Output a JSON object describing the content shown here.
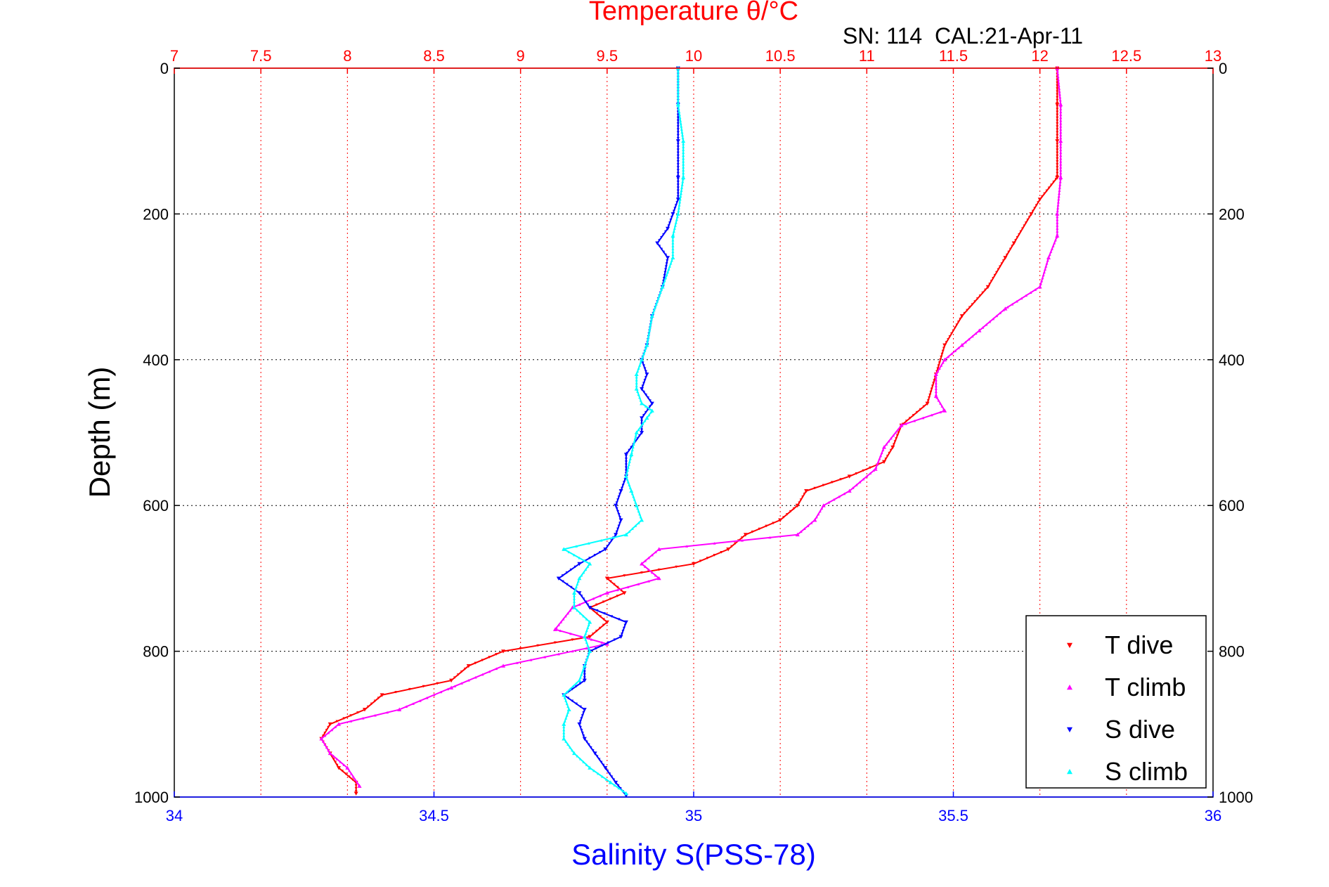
{
  "chart_data": {
    "type": "scatter",
    "top_axis_label": "Temperature θ/°C",
    "bottom_axis_label": "Salinity S(PSS-78)",
    "ylabel": "Depth (m)",
    "annotation": "SN: 114  CAL:21-Apr-11",
    "top_axis": {
      "lim": [
        7,
        13
      ],
      "ticks": [
        "7",
        "7.5",
        "8",
        "8.5",
        "9",
        "9.5",
        "10",
        "10.5",
        "11",
        "11.5",
        "12",
        "12.5",
        "13"
      ],
      "color": "#ff0000"
    },
    "bottom_axis": {
      "lim": [
        34,
        36
      ],
      "ticks": [
        "34",
        "34.5",
        "35",
        "35.5",
        "36"
      ],
      "color": "#0000ff"
    },
    "y_axis": {
      "lim": [
        0,
        1000
      ],
      "reversed": true,
      "ticks": [
        "0",
        "200",
        "400",
        "600",
        "800",
        "1000"
      ]
    },
    "grid": true,
    "legend_position": "bottom-right",
    "series": [
      {
        "name": "T dive",
        "axis": "temperature",
        "color": "#ff0000",
        "marker": "triangle-down",
        "depth": [
          0,
          50,
          100,
          150,
          180,
          200,
          240,
          260,
          300,
          340,
          380,
          420,
          460,
          490,
          520,
          540,
          560,
          580,
          600,
          620,
          640,
          660,
          680,
          700,
          720,
          740,
          760,
          780,
          800,
          820,
          840,
          860,
          880,
          900,
          920,
          940,
          960,
          980,
          995
        ],
        "values": [
          12.1,
          12.1,
          12.1,
          12.1,
          12.0,
          11.95,
          11.85,
          11.8,
          11.7,
          11.55,
          11.45,
          11.4,
          11.35,
          11.2,
          11.15,
          11.1,
          10.9,
          10.65,
          10.6,
          10.5,
          10.3,
          10.2,
          10.0,
          9.5,
          9.6,
          9.4,
          9.5,
          9.4,
          8.9,
          8.7,
          8.6,
          8.2,
          8.1,
          7.9,
          7.85,
          7.9,
          7.95,
          8.05,
          8.05
        ]
      },
      {
        "name": "T climb",
        "axis": "temperature",
        "color": "#ff00ff",
        "marker": "triangle-up",
        "depth": [
          0,
          50,
          100,
          150,
          200,
          230,
          260,
          300,
          330,
          360,
          380,
          400,
          420,
          450,
          470,
          490,
          520,
          550,
          580,
          600,
          620,
          640,
          660,
          680,
          700,
          720,
          740,
          770,
          790,
          820,
          850,
          880,
          900,
          920,
          940,
          960,
          985
        ],
        "values": [
          12.1,
          12.12,
          12.12,
          12.12,
          12.1,
          12.1,
          12.05,
          12.0,
          11.8,
          11.65,
          11.55,
          11.45,
          11.4,
          11.4,
          11.45,
          11.2,
          11.1,
          11.05,
          10.9,
          10.75,
          10.7,
          10.6,
          9.8,
          9.7,
          9.8,
          9.5,
          9.3,
          9.2,
          9.5,
          8.9,
          8.6,
          8.3,
          7.95,
          7.85,
          7.9,
          8.0,
          8.07
        ]
      },
      {
        "name": "S dive",
        "axis": "salinity",
        "color": "#0000ff",
        "marker": "triangle-down",
        "depth": [
          0,
          50,
          100,
          150,
          180,
          200,
          220,
          240,
          260,
          300,
          340,
          380,
          400,
          420,
          440,
          460,
          480,
          500,
          530,
          560,
          580,
          600,
          620,
          640,
          660,
          680,
          700,
          720,
          740,
          760,
          780,
          800,
          820,
          840,
          860,
          880,
          900,
          920,
          940,
          960,
          980,
          998
        ],
        "values": [
          34.97,
          34.97,
          34.97,
          34.97,
          34.97,
          34.96,
          34.95,
          34.93,
          34.95,
          34.94,
          34.92,
          34.91,
          34.9,
          34.91,
          34.9,
          34.92,
          34.9,
          34.9,
          34.87,
          34.87,
          34.86,
          34.85,
          34.86,
          34.85,
          34.83,
          34.78,
          34.74,
          34.78,
          34.8,
          34.87,
          34.86,
          34.8,
          34.79,
          34.79,
          34.75,
          34.79,
          34.78,
          34.79,
          34.81,
          34.83,
          34.85,
          34.87
        ]
      },
      {
        "name": "S climb",
        "axis": "salinity",
        "color": "#00ffff",
        "marker": "triangle-up",
        "depth": [
          0,
          50,
          100,
          150,
          200,
          230,
          260,
          300,
          340,
          380,
          400,
          420,
          440,
          460,
          470,
          480,
          500,
          530,
          560,
          580,
          600,
          620,
          640,
          660,
          680,
          700,
          720,
          740,
          760,
          780,
          800,
          820,
          840,
          860,
          880,
          900,
          920,
          940,
          960,
          980,
          995
        ],
        "values": [
          34.97,
          34.97,
          34.98,
          34.98,
          34.97,
          34.96,
          34.96,
          34.94,
          34.92,
          34.91,
          34.9,
          34.89,
          34.89,
          34.9,
          34.92,
          34.91,
          34.89,
          34.88,
          34.87,
          34.88,
          34.89,
          34.9,
          34.87,
          34.75,
          34.8,
          34.78,
          34.77,
          34.77,
          34.8,
          34.79,
          34.8,
          34.79,
          34.78,
          34.75,
          34.76,
          34.75,
          34.75,
          34.77,
          34.8,
          34.84,
          34.87
        ]
      }
    ]
  }
}
